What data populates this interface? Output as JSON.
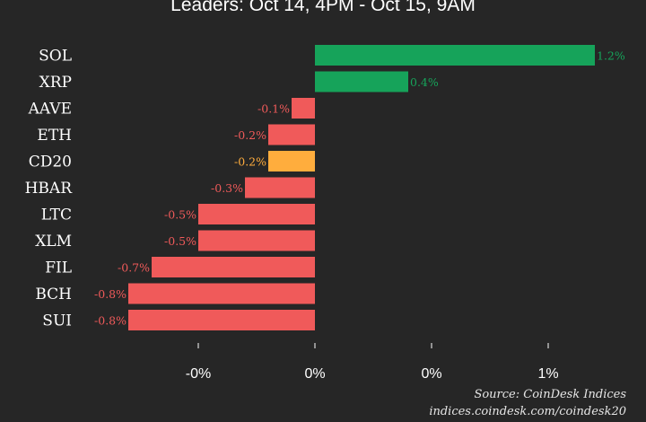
{
  "chart_data": {
    "type": "bar",
    "orientation": "horizontal",
    "title": "Leaders: Oct 14, 4PM - Oct 15, 9AM",
    "categories": [
      "SOL",
      "XRP",
      "AAVE",
      "ETH",
      "CD20",
      "HBAR",
      "LTC",
      "XLM",
      "FIL",
      "BCH",
      "SUI"
    ],
    "values": [
      1.2,
      0.4,
      -0.1,
      -0.2,
      -0.2,
      -0.3,
      -0.5,
      -0.5,
      -0.7,
      -0.8,
      -0.8
    ],
    "value_labels": [
      "1.2%",
      "0.4%",
      "-0.1%",
      "-0.2%",
      "-0.2%",
      "-0.3%",
      "-0.5%",
      "-0.5%",
      "-0.7%",
      "-0.8%",
      "-0.8%"
    ],
    "bar_colors": [
      "#16a35a",
      "#16a35a",
      "#f05a5a",
      "#f05a5a",
      "#ffad3d",
      "#f05a5a",
      "#f05a5a",
      "#f05a5a",
      "#f05a5a",
      "#f05a5a",
      "#f05a5a"
    ],
    "label_colors": [
      "#16a35a",
      "#16a35a",
      "#f05a5a",
      "#f05a5a",
      "#ffad3d",
      "#f05a5a",
      "#f05a5a",
      "#f05a5a",
      "#f05a5a",
      "#f05a5a",
      "#f05a5a"
    ],
    "xlim": [
      -0.8,
      1.2
    ],
    "x_ticks": [
      {
        "value": -0.5,
        "label": "-0%"
      },
      {
        "value": 0,
        "label": "0%"
      },
      {
        "value": 0.5,
        "label": "0%"
      },
      {
        "value": 1,
        "label": "1%"
      }
    ],
    "grid": false,
    "legend": "none"
  },
  "footer": {
    "source": "Source: CoinDesk Indices",
    "url": "indices.coindesk.com/coindesk20"
  },
  "colors": {
    "background": "#262626",
    "positive": "#16a35a",
    "negative": "#f05a5a",
    "index": "#ffad3d"
  }
}
